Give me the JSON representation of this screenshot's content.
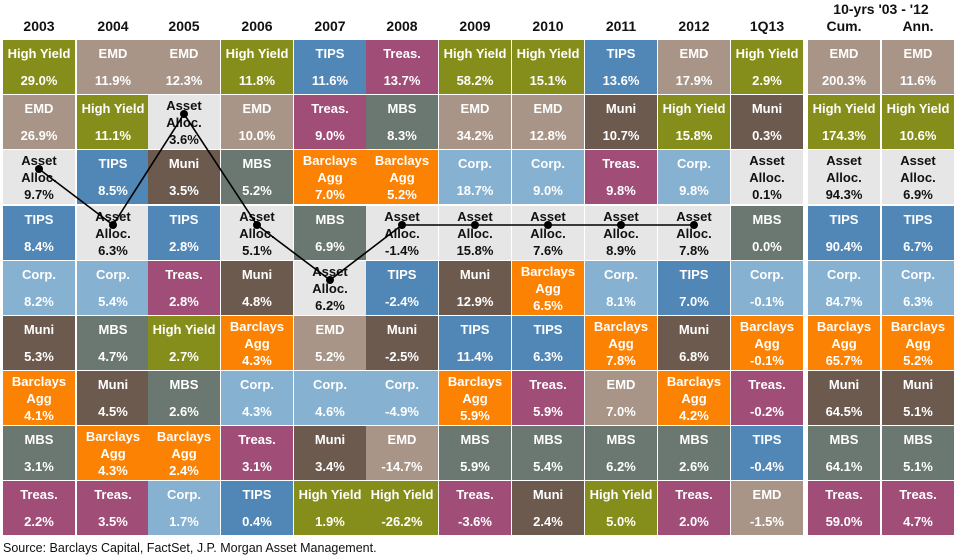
{
  "chart_data": {
    "type": "table",
    "title": "Asset class returns quilt",
    "columns": [
      "2003",
      "2004",
      "2005",
      "2006",
      "2007",
      "2008",
      "2009",
      "2010",
      "2011",
      "2012",
      "1Q13",
      "Cum.",
      "Ann."
    ],
    "group_header": {
      "label": "10-yrs '03 - '12",
      "spans": [
        "Cum.",
        "Ann."
      ]
    },
    "colors": {
      "High Yield": "#858e1a",
      "EMD": "#a89588",
      "TIPS": "#5187b6",
      "Treas.": "#a04d78",
      "MBS": "#6b7872",
      "Muni": "#6d5a4f",
      "Corp.": "#86b1d1",
      "Barclays Agg": "#fb8202",
      "Asset Alloc.": "#e6e6e6"
    },
    "data": [
      [
        [
          "High Yield",
          "29.0%"
        ],
        [
          "EMD",
          "26.9%"
        ],
        [
          "Asset Alloc.",
          "9.7%"
        ],
        [
          "TIPS",
          "8.4%"
        ],
        [
          "Corp.",
          "8.2%"
        ],
        [
          "Muni",
          "5.3%"
        ],
        [
          "Barclays Agg",
          "4.1%"
        ],
        [
          "MBS",
          "3.1%"
        ],
        [
          "Treas.",
          "2.2%"
        ]
      ],
      [
        [
          "EMD",
          "11.9%"
        ],
        [
          "High Yield",
          "11.1%"
        ],
        [
          "TIPS",
          "8.5%"
        ],
        [
          "Asset Alloc.",
          "6.3%"
        ],
        [
          "Corp.",
          "5.4%"
        ],
        [
          "MBS",
          "4.7%"
        ],
        [
          "Muni",
          "4.5%"
        ],
        [
          "Barclays Agg",
          "4.3%"
        ],
        [
          "Treas.",
          "3.5%"
        ]
      ],
      [
        [
          "EMD",
          "12.3%"
        ],
        [
          "Asset Alloc.",
          "3.6%"
        ],
        [
          "Muni",
          "3.5%"
        ],
        [
          "TIPS",
          "2.8%"
        ],
        [
          "Treas.",
          "2.8%"
        ],
        [
          "High Yield",
          "2.7%"
        ],
        [
          "MBS",
          "2.6%"
        ],
        [
          "Barclays Agg",
          "2.4%"
        ],
        [
          "Corp.",
          "1.7%"
        ]
      ],
      [
        [
          "High Yield",
          "11.8%"
        ],
        [
          "EMD",
          "10.0%"
        ],
        [
          "MBS",
          "5.2%"
        ],
        [
          "Asset Alloc.",
          "5.1%"
        ],
        [
          "Muni",
          "4.8%"
        ],
        [
          "Barclays Agg",
          "4.3%"
        ],
        [
          "Corp.",
          "4.3%"
        ],
        [
          "Treas.",
          "3.1%"
        ],
        [
          "TIPS",
          "0.4%"
        ]
      ],
      [
        [
          "TIPS",
          "11.6%"
        ],
        [
          "Treas.",
          "9.0%"
        ],
        [
          "Barclays Agg",
          "7.0%"
        ],
        [
          "MBS",
          "6.9%"
        ],
        [
          "Asset Alloc.",
          "6.2%"
        ],
        [
          "EMD",
          "5.2%"
        ],
        [
          "Corp.",
          "4.6%"
        ],
        [
          "Muni",
          "3.4%"
        ],
        [
          "High Yield",
          "1.9%"
        ]
      ],
      [
        [
          "Treas.",
          "13.7%"
        ],
        [
          "MBS",
          "8.3%"
        ],
        [
          "Barclays Agg",
          "5.2%"
        ],
        [
          "Asset Alloc.",
          "-1.4%"
        ],
        [
          "TIPS",
          "-2.4%"
        ],
        [
          "Muni",
          "-2.5%"
        ],
        [
          "Corp.",
          "-4.9%"
        ],
        [
          "EMD",
          "-14.7%"
        ],
        [
          "High Yield",
          "-26.2%"
        ]
      ],
      [
        [
          "High Yield",
          "58.2%"
        ],
        [
          "EMD",
          "34.2%"
        ],
        [
          "Corp.",
          "18.7%"
        ],
        [
          "Asset Alloc.",
          "15.8%"
        ],
        [
          "Muni",
          "12.9%"
        ],
        [
          "TIPS",
          "11.4%"
        ],
        [
          "Barclays Agg",
          "5.9%"
        ],
        [
          "MBS",
          "5.9%"
        ],
        [
          "Treas.",
          "-3.6%"
        ]
      ],
      [
        [
          "High Yield",
          "15.1%"
        ],
        [
          "EMD",
          "12.8%"
        ],
        [
          "Corp.",
          "9.0%"
        ],
        [
          "Asset Alloc.",
          "7.6%"
        ],
        [
          "Barclays Agg",
          "6.5%"
        ],
        [
          "TIPS",
          "6.3%"
        ],
        [
          "Treas.",
          "5.9%"
        ],
        [
          "MBS",
          "5.4%"
        ],
        [
          "Muni",
          "2.4%"
        ]
      ],
      [
        [
          "TIPS",
          "13.6%"
        ],
        [
          "Muni",
          "10.7%"
        ],
        [
          "Treas.",
          "9.8%"
        ],
        [
          "Asset Alloc.",
          "8.9%"
        ],
        [
          "Corp.",
          "8.1%"
        ],
        [
          "Barclays Agg",
          "7.8%"
        ],
        [
          "EMD",
          "7.0%"
        ],
        [
          "MBS",
          "6.2%"
        ],
        [
          "High Yield",
          "5.0%"
        ]
      ],
      [
        [
          "EMD",
          "17.9%"
        ],
        [
          "High Yield",
          "15.8%"
        ],
        [
          "Corp.",
          "9.8%"
        ],
        [
          "Asset Alloc.",
          "7.8%"
        ],
        [
          "TIPS",
          "7.0%"
        ],
        [
          "Muni",
          "6.8%"
        ],
        [
          "Barclays Agg",
          "4.2%"
        ],
        [
          "MBS",
          "2.6%"
        ],
        [
          "Treas.",
          "2.0%"
        ]
      ],
      [
        [
          "High Yield",
          "2.9%"
        ],
        [
          "Muni",
          "0.3%"
        ],
        [
          "Asset Alloc.",
          "0.1%"
        ],
        [
          "MBS",
          "0.0%"
        ],
        [
          "Corp.",
          "-0.1%"
        ],
        [
          "Barclays Agg",
          "-0.1%"
        ],
        [
          "Treas.",
          "-0.2%"
        ],
        [
          "TIPS",
          "-0.4%"
        ],
        [
          "EMD",
          "-1.5%"
        ]
      ],
      [
        [
          "EMD",
          "200.3%"
        ],
        [
          "High Yield",
          "174.3%"
        ],
        [
          "Asset Alloc.",
          "94.3%"
        ],
        [
          "TIPS",
          "90.4%"
        ],
        [
          "Corp.",
          "84.7%"
        ],
        [
          "Barclays Agg",
          "65.7%"
        ],
        [
          "Muni",
          "64.5%"
        ],
        [
          "MBS",
          "64.1%"
        ],
        [
          "Treas.",
          "59.0%"
        ]
      ],
      [
        [
          "EMD",
          "11.6%"
        ],
        [
          "High Yield",
          "10.6%"
        ],
        [
          "Asset Alloc.",
          "6.9%"
        ],
        [
          "TIPS",
          "6.7%"
        ],
        [
          "Corp.",
          "6.3%"
        ],
        [
          "Barclays Agg",
          "5.2%"
        ],
        [
          "Muni",
          "5.1%"
        ],
        [
          "MBS",
          "5.1%"
        ],
        [
          "Treas.",
          "4.7%"
        ]
      ]
    ],
    "asset_alloc_line": {
      "series_name": "Asset Alloc.",
      "years": [
        "2003",
        "2004",
        "2005",
        "2006",
        "2007",
        "2008",
        "2009",
        "2010",
        "2011",
        "2012"
      ],
      "values": [
        9.7,
        6.3,
        3.6,
        5.1,
        6.2,
        -1.4,
        15.8,
        7.6,
        8.9,
        7.8
      ],
      "line_color": "#000000"
    }
  },
  "source": "Source: Barclays Capital, FactSet, J.P. Morgan Asset Management."
}
